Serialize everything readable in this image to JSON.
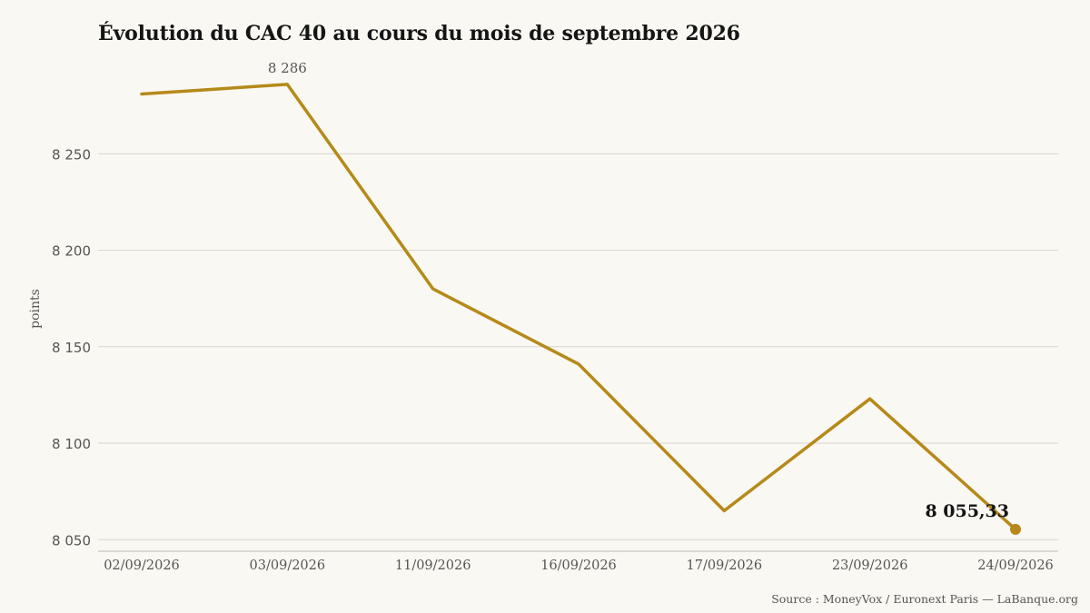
{
  "chart_data": {
    "type": "line",
    "title": "Évolution du CAC 40 au cours du mois de septembre 2026",
    "ylabel": "points",
    "xlabel": "",
    "x": [
      "02/09/2026",
      "03/09/2026",
      "11/09/2026",
      "16/09/2026",
      "17/09/2026",
      "23/09/2026",
      "24/09/2026"
    ],
    "series": [
      {
        "values": [
          8281,
          8286,
          8180,
          8141,
          8065,
          8123,
          8055.33
        ]
      }
    ],
    "yticks": [
      8050,
      8100,
      8150,
      8200,
      8250
    ],
    "ytick_labels": [
      "8 050",
      "8 100",
      "8 150",
      "8 200",
      "8 250"
    ],
    "ylim": [
      8044,
      8293
    ],
    "grid": "horizontal",
    "annotations": [
      {
        "label": "8 286",
        "x": "03/09/2026",
        "value": 8286
      },
      {
        "label": "8 055,33",
        "x": "24/09/2026",
        "value": 8055.33
      }
    ],
    "source": "Source : MoneyVox / Euronext Paris — LaBanque.org",
    "colors": {
      "line": "#b5891a",
      "grid": "#d7d5cc",
      "axis_text": "#555555",
      "title": "#151515",
      "background": "#faf8f2"
    }
  }
}
